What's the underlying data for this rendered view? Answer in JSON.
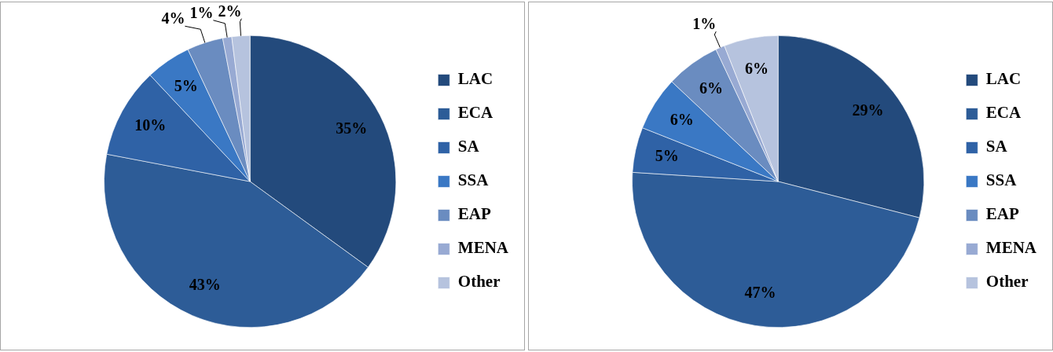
{
  "chart_data": [
    {
      "type": "pie",
      "categories": [
        "LAC",
        "ECA",
        "SA",
        "SSA",
        "EAP",
        "MENA",
        "Other"
      ],
      "values": [
        35,
        43,
        10,
        5,
        4,
        1,
        2
      ],
      "value_labels": [
        "35%",
        "43%",
        "10%",
        "5%",
        "4%",
        "1%",
        "2%"
      ],
      "colors": [
        "#234a7c",
        "#2d5c97",
        "#2f62a6",
        "#3a78c4",
        "#6a8cc0",
        "#98aad3",
        "#b6c3de"
      ],
      "legend": "right"
    },
    {
      "type": "pie",
      "categories": [
        "LAC",
        "ECA",
        "SA",
        "SSA",
        "EAP",
        "MENA",
        "Other"
      ],
      "values": [
        29,
        47,
        5,
        6,
        6,
        1,
        6
      ],
      "value_labels": [
        "29%",
        "47%",
        "5%",
        "6%",
        "6%",
        "1%",
        "6%"
      ],
      "colors": [
        "#234a7c",
        "#2d5c97",
        "#2f62a6",
        "#3a78c4",
        "#6a8cc0",
        "#98aad3",
        "#b6c3de"
      ],
      "legend": "right"
    }
  ]
}
